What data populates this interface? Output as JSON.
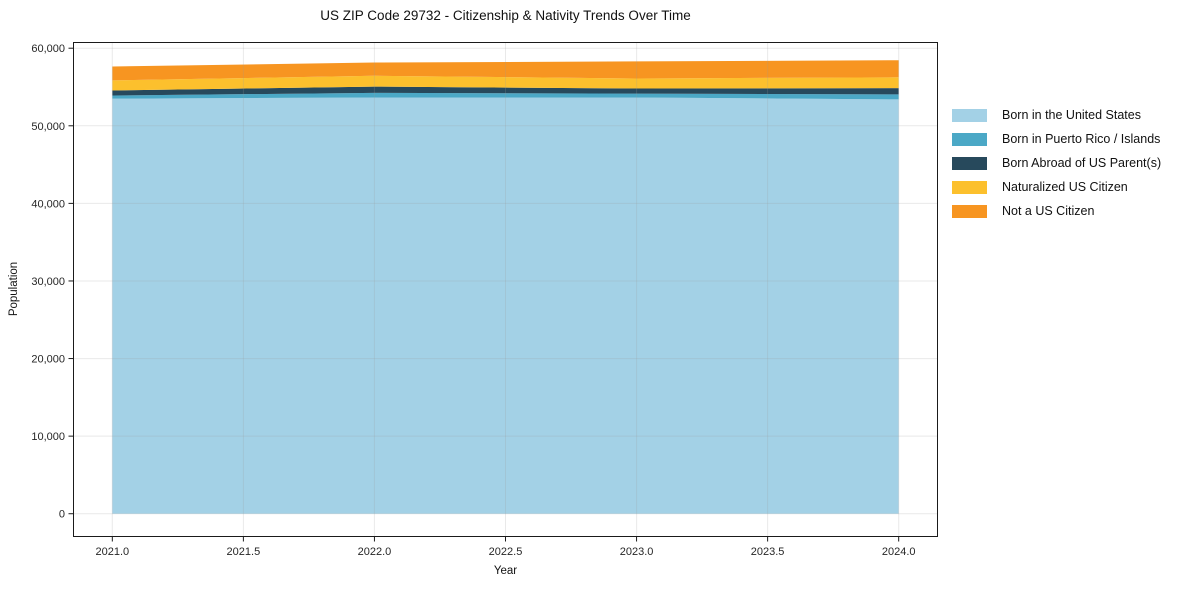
{
  "chart_data": {
    "type": "area",
    "stacked": true,
    "title": "US ZIP Code 29732 - Citizenship & Nativity Trends Over Time",
    "xlabel": "Year",
    "ylabel": "Population",
    "x": [
      2021,
      2022,
      2023,
      2024
    ],
    "series": [
      {
        "name": "Born in the United States",
        "color": "#a3d1e6",
        "values": [
          53500,
          53650,
          53650,
          53400
        ]
      },
      {
        "name": "Born in Puerto Rico / Islands",
        "color": "#4ba8c6",
        "values": [
          400,
          600,
          500,
          650
        ]
      },
      {
        "name": "Born Abroad of US Parent(s)",
        "color": "#27495c",
        "values": [
          650,
          800,
          650,
          800
        ]
      },
      {
        "name": "Naturalized US Citizen",
        "color": "#fcc02d",
        "values": [
          1300,
          1400,
          1300,
          1400
        ]
      },
      {
        "name": "Not a US Citizen",
        "color": "#f79521",
        "values": [
          1800,
          1700,
          2200,
          2200
        ]
      }
    ],
    "xlim": [
      2020.85,
      2024.15
    ],
    "ylim": [
      -3000,
      60800
    ],
    "xticks": [
      2021.0,
      2021.5,
      2022.0,
      2022.5,
      2023.0,
      2023.5,
      2024.0
    ],
    "xtick_labels": [
      "2021.0",
      "2021.5",
      "2022.0",
      "2022.5",
      "2023.0",
      "2023.5",
      "2024.0"
    ],
    "yticks": [
      0,
      10000,
      20000,
      30000,
      40000,
      50000,
      60000
    ],
    "ytick_labels": [
      "0",
      "10,000",
      "20,000",
      "30,000",
      "40,000",
      "50,000",
      "60,000"
    ],
    "grid": true,
    "legend_position": "outside-right-top",
    "colors": {
      "axis": "#1a1a1a",
      "tick_text": "#262626",
      "grid_overlay": "#999999",
      "background": "#ffffff"
    }
  }
}
